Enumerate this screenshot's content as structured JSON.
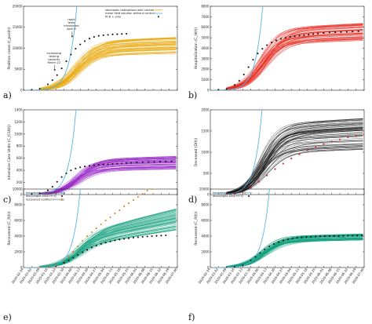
{
  "x_dates": [
    "2020-02-24",
    "2020-03-02",
    "2020-03-09",
    "2020-03-16",
    "2020-03-23",
    "2020-03-30",
    "2020-04-06",
    "2020-04-13",
    "2020-04-20",
    "2020-04-27",
    "2020-05-04",
    "2020-05-11",
    "2020-05-18",
    "2020-05-25",
    "2020-06-01",
    "2020-06-08",
    "2020-06-15",
    "2020-06-22",
    "2020-06-29",
    "2020-07-06"
  ],
  "xtick_labels": [
    "2020-02-24",
    "2020-03-02",
    "2020-03-09",
    "2020-03-16",
    "2020-03-23",
    "2020-03-30",
    "2020-04-06",
    "2020-04-13",
    "2020-04-20",
    "2020-04-27",
    "2020-05-04",
    "2020-05-11",
    "2020-05-18",
    "2020-05-25",
    "2020-06-01",
    "2020-06-08",
    "2020-06-15",
    "2020-06-22",
    "2020-06-29",
    "2020-07-06"
  ],
  "colors": {
    "axis": "#222222",
    "mean_field": "#5ab4e5",
    "orange": "#e8a70a",
    "red": "#e8281e",
    "purple": "#9a2bc8",
    "black": "#111111",
    "green": "#0f9e7a",
    "orange_dots": "#e07a0a",
    "red_dots": "#d62020"
  },
  "chart_data": [
    {
      "id": "a",
      "panel_label": "a)",
      "type": "line",
      "ylabel": "Positive cases (I_pos(t))",
      "ylim": [
        0,
        20000
      ],
      "yticks": [
        0,
        5000,
        10000,
        15000,
        20000
      ],
      "show_xtick_labels": false,
      "band_color": "orange",
      "band_low": 8800,
      "band_high": 12800,
      "n_realizations": 60,
      "mean_field_scale": 10500,
      "legend": [
        "stochastic realizations with control",
        "mean field solution without control",
        "PCR + only"
      ],
      "annotations": [
        {
          "text": [
            "increasing",
            "testing",
            "capacity",
            "March 22"
          ],
          "date": "2020-03-22",
          "value": 4500
        },
        {
          "text": [
            "rapid",
            "tests",
            "introduced",
            "April 6"
          ],
          "date": "2020-04-06",
          "value": 12500
        }
      ],
      "series": [
        {
          "style": "dots",
          "color": "black",
          "x": [
            "2020-02-24",
            "2020-03-02",
            "2020-03-09",
            "2020-03-16",
            "2020-03-20",
            "2020-03-24",
            "2020-03-28",
            "2020-04-01",
            "2020-04-05",
            "2020-04-09",
            "2020-04-13",
            "2020-04-17",
            "2020-04-21",
            "2020-04-25",
            "2020-04-29",
            "2020-05-03",
            "2020-05-07",
            "2020-05-11",
            "2020-05-15",
            "2020-05-19",
            "2020-05-23"
          ],
          "y": [
            0,
            50,
            350,
            1400,
            2400,
            3600,
            5200,
            6900,
            8500,
            9900,
            10900,
            11700,
            12300,
            12700,
            12950,
            13100,
            13200,
            13300,
            13350,
            13400,
            13450
          ]
        }
      ]
    },
    {
      "id": "b",
      "panel_label": "b)",
      "type": "line",
      "ylabel": "Hospitalization (C_H(t))",
      "ylim": [
        0,
        8000
      ],
      "yticks": [
        0,
        1000,
        2000,
        3000,
        4000,
        5000,
        6000,
        7000,
        8000
      ],
      "show_xtick_labels": false,
      "band_color": "red",
      "band_low": 4700,
      "band_high": 6400,
      "n_realizations": 60,
      "mean_field_scale": 4700,
      "series": [
        {
          "style": "dots",
          "color": "black",
          "x": [
            "2020-03-02",
            "2020-03-09",
            "2020-03-16",
            "2020-03-20",
            "2020-03-24",
            "2020-03-28",
            "2020-04-01",
            "2020-04-05",
            "2020-04-09",
            "2020-04-13",
            "2020-04-17",
            "2020-04-21",
            "2020-04-25",
            "2020-04-29",
            "2020-05-03",
            "2020-05-07",
            "2020-05-11",
            "2020-05-15",
            "2020-05-19",
            "2020-05-23",
            "2020-05-27",
            "2020-06-01",
            "2020-06-06",
            "2020-06-11",
            "2020-06-16",
            "2020-06-21",
            "2020-06-26",
            "2020-07-01"
          ],
          "y": [
            20,
            120,
            500,
            900,
            1500,
            2200,
            2900,
            3500,
            3950,
            4300,
            4550,
            4750,
            4900,
            5000,
            5080,
            5150,
            5200,
            5250,
            5300,
            5350,
            5400,
            5450,
            5500,
            5520,
            5550,
            5570,
            5600,
            5620
          ]
        }
      ]
    },
    {
      "id": "c",
      "panel_label": "c)",
      "type": "line",
      "ylabel": "Intensive Care Units (C_ICU(t))",
      "ylim": [
        0,
        1400
      ],
      "yticks": [
        0,
        200,
        400,
        600,
        800,
        1000,
        1200,
        1400
      ],
      "show_xtick_labels": false,
      "band_color": "purple",
      "band_low": 420,
      "band_high": 640,
      "n_realizations": 60,
      "mean_field_scale": 820,
      "series": [
        {
          "style": "dots",
          "color": "black",
          "x": [
            "2020-03-02",
            "2020-03-09",
            "2020-03-16",
            "2020-03-20",
            "2020-03-24",
            "2020-03-28",
            "2020-04-01",
            "2020-04-05",
            "2020-04-09",
            "2020-04-13",
            "2020-04-17",
            "2020-04-21",
            "2020-04-25",
            "2020-04-29",
            "2020-05-03",
            "2020-05-07",
            "2020-05-11",
            "2020-05-15",
            "2020-05-19",
            "2020-05-23",
            "2020-05-27",
            "2020-06-01",
            "2020-06-06",
            "2020-06-11",
            "2020-06-16",
            "2020-06-21",
            "2020-06-26",
            "2020-07-01"
          ],
          "y": [
            5,
            20,
            70,
            130,
            210,
            290,
            350,
            400,
            430,
            450,
            465,
            475,
            485,
            490,
            495,
            500,
            505,
            510,
            515,
            520,
            525,
            530,
            535,
            538,
            540,
            542,
            545,
            548
          ]
        }
      ]
    },
    {
      "id": "d",
      "panel_label": "d)",
      "type": "line",
      "ylabel": "Deceased (D(t))",
      "ylim": [
        0,
        2000
      ],
      "yticks": [
        0,
        500,
        1000,
        1500,
        2000
      ],
      "show_xtick_labels": false,
      "band_color": "black",
      "band_low": 1050,
      "band_high": 1800,
      "n_realizations": 60,
      "mean_field_scale": 1300,
      "series": [
        {
          "style": "dots",
          "color": "red_dots",
          "x": [
            "2020-03-09",
            "2020-03-16",
            "2020-03-23",
            "2020-03-30",
            "2020-04-06",
            "2020-04-13",
            "2020-04-20",
            "2020-04-27",
            "2020-05-04",
            "2020-05-11",
            "2020-05-18",
            "2020-05-25",
            "2020-06-01",
            "2020-06-08",
            "2020-06-15",
            "2020-06-22",
            "2020-06-29",
            "2020-07-06"
          ],
          "y": [
            2,
            15,
            60,
            160,
            300,
            450,
            600,
            730,
            850,
            950,
            1040,
            1120,
            1190,
            1250,
            1300,
            1350,
            1390,
            1420
          ]
        }
      ]
    },
    {
      "id": "e",
      "panel_label": "e)",
      "type": "line",
      "ylabel": "Recovered (C_R(t))",
      "ylim": [
        0,
        10000
      ],
      "yticks": [
        0,
        2000,
        4000,
        6000,
        8000,
        10000
      ],
      "show_xtick_labels": true,
      "band_color": "green",
      "band_low": 4800,
      "band_high": 7600,
      "n_realizations": 60,
      "mean_field_scale": 3200,
      "legend": [
        "recovered notified: H+I+L,s",
        "discharges alive H+Q",
        "recovered notified H+I+L,s"
      ],
      "series": [
        {
          "style": "dots",
          "color": "black",
          "x": [
            "2020-03-09",
            "2020-03-16",
            "2020-03-23",
            "2020-03-30",
            "2020-04-03",
            "2020-04-07",
            "2020-04-11",
            "2020-04-15",
            "2020-04-19",
            "2020-04-23",
            "2020-04-27",
            "2020-05-01",
            "2020-05-05",
            "2020-05-09",
            "2020-05-13",
            "2020-05-17",
            "2020-05-21",
            "2020-05-25",
            "2020-05-29",
            "2020-06-02",
            "2020-06-06",
            "2020-06-10",
            "2020-06-14",
            "2020-06-18",
            "2020-06-22",
            "2020-06-26"
          ],
          "y": [
            0,
            40,
            200,
            600,
            900,
            1250,
            1600,
            1950,
            2250,
            2550,
            2800,
            3000,
            3180,
            3320,
            3450,
            3560,
            3650,
            3730,
            3800,
            3860,
            3910,
            3960,
            4000,
            4040,
            4070,
            4100
          ]
        },
        {
          "style": "dots",
          "color": "orange_dots",
          "x": [
            "2020-03-09",
            "2020-03-16",
            "2020-03-23",
            "2020-03-30",
            "2020-04-03",
            "2020-04-07",
            "2020-04-11",
            "2020-04-15",
            "2020-04-19",
            "2020-04-23",
            "2020-04-27",
            "2020-05-01",
            "2020-05-05",
            "2020-05-09",
            "2020-05-13",
            "2020-05-17",
            "2020-05-21",
            "2020-05-25",
            "2020-05-29",
            "2020-06-02",
            "2020-06-06",
            "2020-06-10",
            "2020-06-14"
          ],
          "y": [
            0,
            60,
            300,
            900,
            1400,
            2000,
            2700,
            3400,
            4000,
            4500,
            5000,
            5500,
            6000,
            6400,
            6900,
            7300,
            7800,
            8200,
            8600,
            9000,
            9400,
            9800,
            10000
          ]
        }
      ]
    },
    {
      "id": "f",
      "panel_label": "f)",
      "type": "line",
      "ylabel": "Recovered (C_R(t))",
      "ylim": [
        0,
        10000
      ],
      "yticks": [
        0,
        2000,
        4000,
        6000,
        8000,
        10000
      ],
      "show_xtick_labels": true,
      "band_color": "green",
      "band_low": 3500,
      "band_high": 4300,
      "n_realizations": 60,
      "mean_field_scale": 2300,
      "legend": [
        "recovered notified H+Q",
        "discharges alive H+Q"
      ],
      "series": [
        {
          "style": "dots",
          "color": "black",
          "x": [
            "2020-03-09",
            "2020-03-16",
            "2020-03-23",
            "2020-03-30",
            "2020-04-03",
            "2020-04-07",
            "2020-04-11",
            "2020-04-15",
            "2020-04-19",
            "2020-04-23",
            "2020-04-27",
            "2020-05-01",
            "2020-05-05",
            "2020-05-09",
            "2020-05-13",
            "2020-05-17",
            "2020-05-21",
            "2020-05-25",
            "2020-05-29",
            "2020-06-02",
            "2020-06-06",
            "2020-06-10",
            "2020-06-14",
            "2020-06-18",
            "2020-06-22",
            "2020-06-26",
            "2020-06-30",
            "2020-07-04"
          ],
          "y": [
            0,
            40,
            300,
            900,
            1350,
            1850,
            2300,
            2700,
            3000,
            3250,
            3450,
            3600,
            3700,
            3780,
            3840,
            3880,
            3920,
            3950,
            3970,
            3990,
            4000,
            4010,
            4020,
            4030,
            4040,
            4050,
            4060,
            4070
          ]
        }
      ]
    }
  ]
}
